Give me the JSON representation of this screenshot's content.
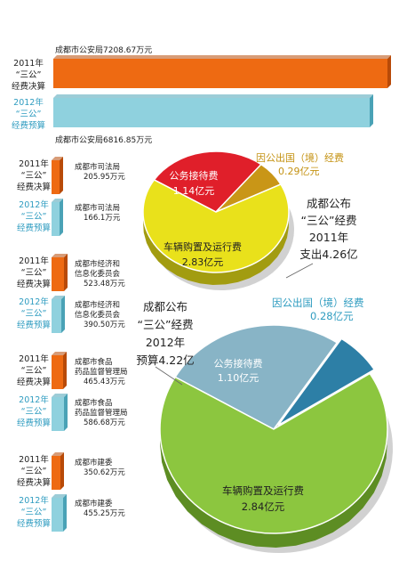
{
  "colors": {
    "orange": "#ee6a12",
    "orange_dark": "#b84a08",
    "cyan": "#8fd1de",
    "cyan_dark": "#4aa2b6",
    "red": "#e01f2a",
    "gold": "#c99617",
    "yellow": "#e9e11b",
    "green": "#8cc63f",
    "blue_slice": "#2d7fa6",
    "steel": "#88b4c6",
    "text_dark": "#222222",
    "text_cyan": "#2f9cc0",
    "text_gold": "#c49212"
  },
  "icons": [
    "callout-line",
    "pie-shadow"
  ],
  "label_2011_lines": [
    "2011年",
    "“三公”",
    "经费决算"
  ],
  "label_2012_lines": [
    "2012年",
    "“三公”",
    "经费预算"
  ],
  "chart_data": [
    {
      "type": "bar",
      "orientation": "horizontal",
      "groups": [
        {
          "agency_lines": [
            "成都市公安局"
          ],
          "value_2011_text": "7208.67万元",
          "value_2012_text": "6816.85万元",
          "values": [
            7208.67,
            6816.85
          ]
        },
        {
          "agency_lines": [
            "成都市司法局"
          ],
          "value_2011_text": "205.95万元",
          "value_2012_text": "166.1万元",
          "values": [
            205.95,
            166.1
          ]
        },
        {
          "agency_lines": [
            "成都市经济和",
            "信息化委员会"
          ],
          "value_2011_text": "523.48万元",
          "value_2012_text": "390.50万元",
          "values": [
            523.48,
            390.5
          ]
        },
        {
          "agency_lines": [
            "成都市食品",
            "药品监督管理局"
          ],
          "value_2011_text": "465.43万元",
          "value_2012_text": "586.68万元",
          "values": [
            465.43,
            586.68
          ]
        },
        {
          "agency_lines": [
            "成都市建委"
          ],
          "value_2011_text": "350.62万元",
          "value_2012_text": "455.25万元",
          "values": [
            350.62,
            455.25
          ]
        }
      ]
    },
    {
      "type": "pie",
      "total_lines": [
        "成都公布",
        "“三公”经费",
        "2011年",
        "支出4.26亿"
      ],
      "slices": [
        {
          "lines": [
            "公务接待费",
            "1.14亿元"
          ],
          "value": 1.14
        },
        {
          "lines": [
            "因公出国（境）经费",
            "0.29亿元"
          ],
          "value": 0.29
        },
        {
          "lines": [
            "车辆购置及运行费",
            "2.83亿元"
          ],
          "value": 2.83
        }
      ]
    },
    {
      "type": "pie",
      "total_lines": [
        "成都公布",
        "“三公”经费",
        "2012年",
        "预算4.22亿"
      ],
      "slices": [
        {
          "lines": [
            "公务接待费",
            "1.10亿元"
          ],
          "value": 1.1
        },
        {
          "lines": [
            "因公出国（境）经费",
            "0.28亿元"
          ],
          "value": 0.28
        },
        {
          "lines": [
            "车辆购置及运行费",
            "2.84亿元"
          ],
          "value": 2.84
        }
      ]
    }
  ]
}
